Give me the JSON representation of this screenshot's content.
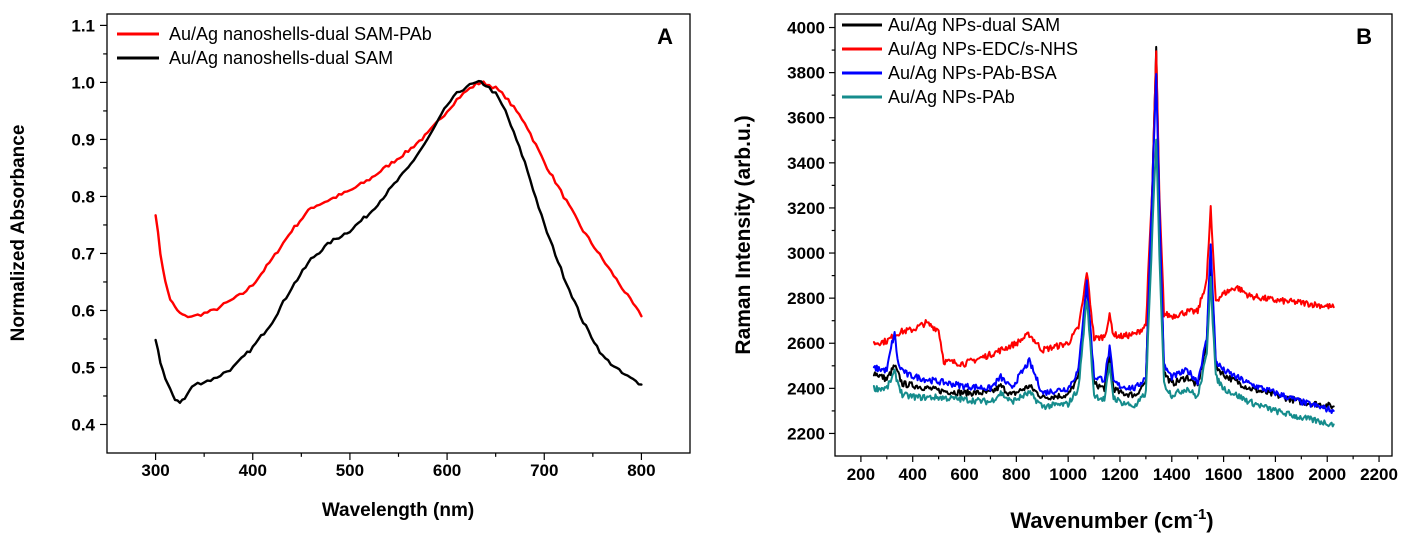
{
  "figure": {
    "background": "#ffffff"
  },
  "chart_data": [
    {
      "type": "line",
      "panel": "A",
      "xlabel": "Wavelength (nm)",
      "ylabel": "Normalized Absorbance",
      "xlim": [
        250,
        850
      ],
      "ylim": [
        0.35,
        1.12
      ],
      "xticks": [
        300,
        400,
        500,
        600,
        700,
        800
      ],
      "xtick_labels": [
        "300",
        "400",
        "500",
        "600",
        "700",
        "800"
      ],
      "yticks": [
        0.4,
        0.5,
        0.6,
        0.7,
        0.8,
        0.9,
        1.0,
        1.1
      ],
      "ytick_labels": [
        "0.4",
        "0.5",
        "0.6",
        "0.7",
        "0.8",
        "0.9",
        "1.0",
        "1.1"
      ],
      "grid": false,
      "legend_position": "top-left",
      "series": [
        {
          "name": "Au/Ag nanoshells-dual SAM-PAb",
          "color": "#ff0000",
          "x": [
            300,
            305,
            310,
            315,
            320,
            325,
            330,
            340,
            350,
            360,
            370,
            380,
            390,
            400,
            420,
            440,
            460,
            480,
            500,
            520,
            540,
            560,
            580,
            600,
            610,
            620,
            630,
            635,
            640,
            650,
            660,
            680,
            700,
            720,
            740,
            760,
            780,
            800
          ],
          "y": [
            0.77,
            0.7,
            0.65,
            0.62,
            0.605,
            0.595,
            0.59,
            0.59,
            0.595,
            0.6,
            0.61,
            0.62,
            0.63,
            0.645,
            0.69,
            0.74,
            0.78,
            0.795,
            0.81,
            0.83,
            0.855,
            0.88,
            0.91,
            0.95,
            0.97,
            0.985,
            0.997,
            1.0,
            0.998,
            0.99,
            0.975,
            0.93,
            0.86,
            0.8,
            0.74,
            0.69,
            0.64,
            0.59
          ]
        },
        {
          "name": "Au/Ag nanoshells-dual SAM",
          "color": "#000000",
          "x": [
            300,
            305,
            310,
            315,
            320,
            325,
            330,
            335,
            340,
            350,
            360,
            370,
            380,
            400,
            420,
            440,
            460,
            480,
            500,
            520,
            540,
            560,
            580,
            600,
            610,
            620,
            630,
            635,
            640,
            650,
            660,
            680,
            700,
            720,
            740,
            760,
            780,
            800
          ],
          "y": [
            0.55,
            0.51,
            0.48,
            0.46,
            0.445,
            0.44,
            0.445,
            0.46,
            0.47,
            0.475,
            0.48,
            0.49,
            0.5,
            0.535,
            0.58,
            0.64,
            0.69,
            0.72,
            0.74,
            0.77,
            0.81,
            0.85,
            0.9,
            0.96,
            0.98,
            0.993,
            0.999,
            1.0,
            0.995,
            0.98,
            0.95,
            0.86,
            0.75,
            0.66,
            0.58,
            0.52,
            0.49,
            0.47
          ]
        }
      ]
    },
    {
      "type": "line",
      "panel": "B",
      "xlabel": "Wavenumber (cm",
      "xlabel_superscript": "-1",
      "xlabel_suffix": ")",
      "ylabel": "Raman Intensity (arb.u.)",
      "xlim": [
        100,
        2250
      ],
      "ylim": [
        2100,
        4060
      ],
      "xticks": [
        200,
        400,
        600,
        800,
        1000,
        1200,
        1400,
        1600,
        1800,
        2000,
        2200
      ],
      "xtick_labels": [
        "200",
        "400",
        "600",
        "800",
        "1000",
        "1200",
        "1400",
        "1600",
        "1800",
        "2000",
        "2200"
      ],
      "yticks": [
        2200,
        2400,
        2600,
        2800,
        3000,
        3200,
        3400,
        3600,
        3800,
        4000
      ],
      "ytick_labels": [
        "2200",
        "2400",
        "2600",
        "2800",
        "3000",
        "3200",
        "3400",
        "3600",
        "3800",
        "4000"
      ],
      "grid": false,
      "legend_position": "top-left",
      "series": [
        {
          "name": "Au/Ag NPs-dual SAM",
          "color": "#000000",
          "x": [
            250,
            300,
            330,
            360,
            420,
            500,
            600,
            700,
            740,
            780,
            850,
            900,
            1000,
            1040,
            1060,
            1072,
            1085,
            1100,
            1140,
            1160,
            1175,
            1200,
            1260,
            1300,
            1325,
            1340,
            1352,
            1370,
            1400,
            1460,
            1500,
            1535,
            1550,
            1558,
            1570,
            1600,
            1700,
            1800,
            1900,
            2025
          ],
          "y": [
            2470,
            2440,
            2500,
            2420,
            2410,
            2390,
            2380,
            2380,
            2410,
            2370,
            2410,
            2360,
            2370,
            2450,
            2700,
            2860,
            2650,
            2420,
            2400,
            2540,
            2400,
            2380,
            2370,
            2430,
            3300,
            3920,
            3200,
            2470,
            2420,
            2450,
            2410,
            2600,
            3000,
            2800,
            2500,
            2460,
            2400,
            2370,
            2340,
            2320
          ]
        },
        {
          "name": "Au/Ag NPs-EDC/s-NHS",
          "color": "#ff0000",
          "x": [
            250,
            300,
            350,
            400,
            450,
            500,
            520,
            600,
            700,
            800,
            850,
            900,
            1000,
            1040,
            1060,
            1072,
            1085,
            1100,
            1140,
            1160,
            1175,
            1200,
            1260,
            1300,
            1325,
            1340,
            1352,
            1370,
            1400,
            1460,
            1500,
            1535,
            1550,
            1558,
            1570,
            1600,
            1650,
            1700,
            1800,
            1900,
            2025
          ],
          "y": [
            2600,
            2610,
            2650,
            2660,
            2690,
            2660,
            2520,
            2510,
            2550,
            2600,
            2640,
            2570,
            2600,
            2670,
            2810,
            2920,
            2780,
            2620,
            2630,
            2720,
            2640,
            2630,
            2640,
            2680,
            3300,
            3900,
            3250,
            2730,
            2720,
            2740,
            2740,
            2880,
            3200,
            3020,
            2790,
            2820,
            2850,
            2810,
            2790,
            2780,
            2760
          ]
        },
        {
          "name": "Au/Ag NPs-PAb-BSA",
          "color": "#0000ff",
          "x": [
            250,
            300,
            320,
            330,
            345,
            380,
            450,
            500,
            600,
            700,
            740,
            780,
            850,
            900,
            1000,
            1040,
            1060,
            1072,
            1085,
            1100,
            1140,
            1160,
            1175,
            1200,
            1260,
            1300,
            1325,
            1340,
            1352,
            1370,
            1400,
            1460,
            1500,
            1535,
            1550,
            1558,
            1570,
            1600,
            1700,
            1800,
            1900,
            2025
          ],
          "y": [
            2490,
            2480,
            2600,
            2640,
            2500,
            2460,
            2440,
            2430,
            2410,
            2400,
            2450,
            2400,
            2520,
            2380,
            2400,
            2480,
            2740,
            2870,
            2680,
            2450,
            2440,
            2580,
            2430,
            2410,
            2400,
            2450,
            3300,
            3800,
            3200,
            2500,
            2450,
            2480,
            2430,
            2620,
            3050,
            2820,
            2520,
            2480,
            2420,
            2380,
            2340,
            2300
          ]
        },
        {
          "name": "Au/Ag NPs-PAb",
          "color": "#158c8c",
          "x": [
            250,
            300,
            330,
            360,
            420,
            500,
            600,
            700,
            740,
            780,
            850,
            900,
            1000,
            1040,
            1060,
            1072,
            1085,
            1100,
            1140,
            1160,
            1175,
            1200,
            1260,
            1300,
            1325,
            1340,
            1352,
            1370,
            1400,
            1460,
            1500,
            1535,
            1550,
            1558,
            1570,
            1600,
            1700,
            1800,
            1900,
            2025
          ],
          "y": [
            2400,
            2400,
            2470,
            2370,
            2360,
            2360,
            2350,
            2340,
            2380,
            2340,
            2380,
            2320,
            2330,
            2400,
            2650,
            2800,
            2600,
            2370,
            2350,
            2500,
            2360,
            2340,
            2320,
            2380,
            3100,
            3500,
            3000,
            2420,
            2370,
            2400,
            2360,
            2550,
            2900,
            2700,
            2450,
            2400,
            2340,
            2300,
            2270,
            2240
          ]
        }
      ]
    }
  ]
}
